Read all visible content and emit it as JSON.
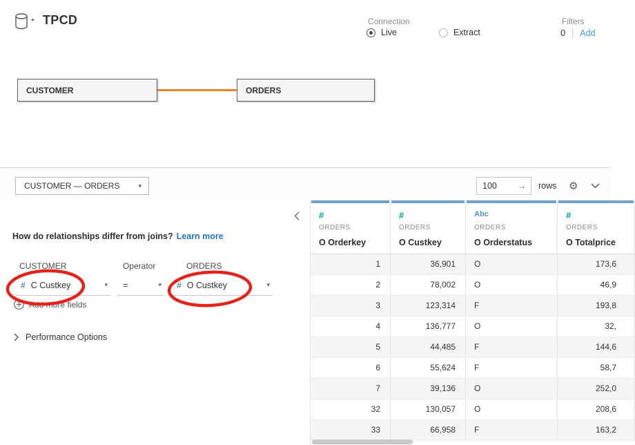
{
  "header": {
    "title": "TPCD",
    "connection": {
      "label": "Connection",
      "options": [
        {
          "label": "Live",
          "selected": true
        },
        {
          "label": "Extract",
          "selected": false
        }
      ]
    },
    "filters": {
      "label": "Filters",
      "count": "0",
      "add_label": "Add"
    }
  },
  "canvas": {
    "tables": [
      {
        "name": "CUSTOMER"
      },
      {
        "name": "ORDERS"
      }
    ],
    "relationship_color": "#ee8130"
  },
  "toolbar": {
    "relationship_selector": "CUSTOMER  —  ORDERS",
    "rows_count": "100",
    "rows_label": "rows"
  },
  "panel": {
    "question": "How do relationships differ from joins?",
    "learn_more_label": "Learn more",
    "left_table_label": "CUSTOMER",
    "operator_label": "Operator",
    "right_table_label": "ORDERS",
    "left_field": "C Custkey",
    "operator_value": "=",
    "right_field": "O Custkey",
    "field_type_glyph": "#",
    "add_more_fields_label": "Add more fields",
    "performance_options_label": "Performance Options"
  },
  "grid": {
    "columns": [
      {
        "type": "#",
        "table": "ORDERS",
        "field": "O Orderkey",
        "align": "right"
      },
      {
        "type": "#",
        "table": "ORDERS",
        "field": "O Custkey",
        "align": "right"
      },
      {
        "type": "Abc",
        "table": "ORDERS",
        "field": "O Orderstatus",
        "align": "left"
      },
      {
        "type": "#",
        "table": "ORDERS",
        "field": "O Totalprice",
        "align": "right"
      }
    ],
    "rows": [
      [
        "1",
        "36,901",
        "O",
        "173,6"
      ],
      [
        "2",
        "78,002",
        "O",
        "46,9"
      ],
      [
        "3",
        "123,314",
        "F",
        "193,8"
      ],
      [
        "4",
        "136,777",
        "O",
        "32,"
      ],
      [
        "5",
        "44,485",
        "F",
        "144,6"
      ],
      [
        "6",
        "55,624",
        "F",
        "58,7"
      ],
      [
        "7",
        "39,136",
        "O",
        "252,0"
      ],
      [
        "32",
        "130,057",
        "O",
        "208,6"
      ],
      [
        "33",
        "66,958",
        "F",
        "163,2"
      ]
    ]
  },
  "icons": {
    "caret_down": "▾",
    "rows_arrow": "→",
    "gear": "⚙"
  },
  "colors": {
    "accent_strip": "#6fa3c7",
    "number_type": "#00a295",
    "string_type": "#4a93c5",
    "relationship_noodle": "#ee8130",
    "annotation_red": "#e5231b",
    "link_blue": "#2876b8"
  }
}
